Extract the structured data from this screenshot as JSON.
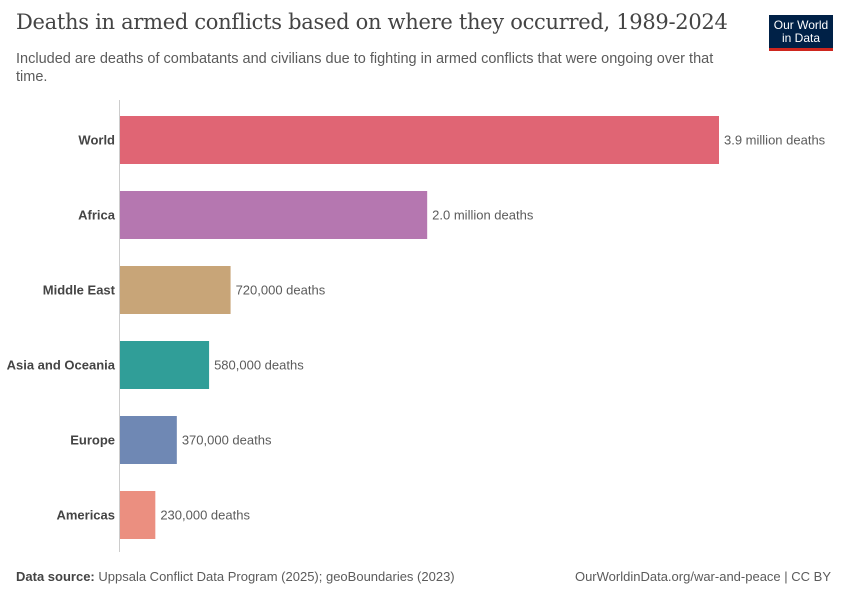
{
  "chart_data": {
    "type": "bar",
    "orientation": "horizontal",
    "title": "Deaths in armed conflicts based on where they occurred, 1989-2024",
    "subtitle": "Included are deaths of combatants and civilians due to fighting in armed conflicts that were ongoing over that time.",
    "categories": [
      "World",
      "Africa",
      "Middle East",
      "Asia and Oceania",
      "Europe",
      "Americas"
    ],
    "values": [
      3900000,
      2000000,
      720000,
      580000,
      370000,
      230000
    ],
    "data_labels": [
      "3.9 million deaths",
      "2.0 million deaths",
      "720,000 deaths",
      "580,000 deaths",
      "370,000 deaths",
      "230,000 deaths"
    ],
    "colors": [
      "#e06574",
      "#b577b0",
      "#c8a578",
      "#309e98",
      "#6f88b4",
      "#eb8f80"
    ],
    "xlim": [
      0,
      3900000
    ],
    "grid": false
  },
  "logo": {
    "line1": "Our World",
    "line2": "in Data"
  },
  "footer": {
    "source_label": "Data source:",
    "source": "Uppsala Conflict Data Program (2025); geoBoundaries (2023)",
    "credit": "OurWorldinData.org/war-and-peace | CC BY"
  }
}
